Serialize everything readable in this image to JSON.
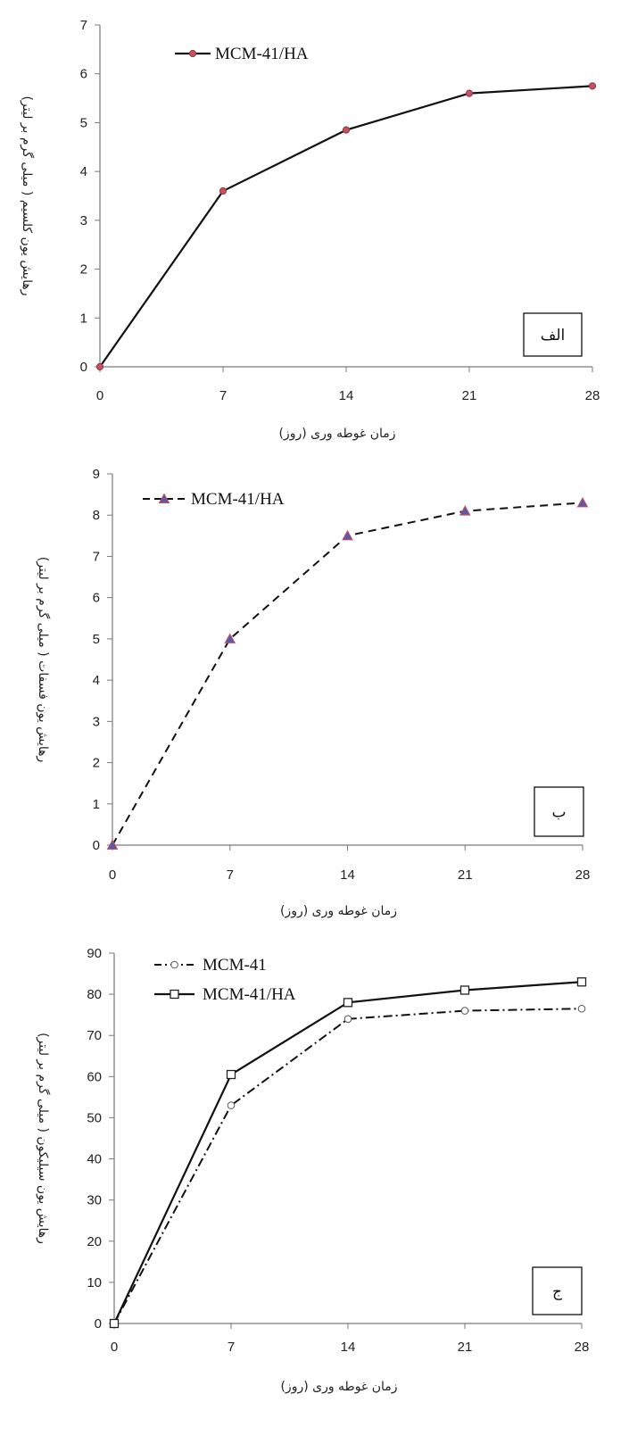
{
  "chart_data": [
    {
      "type": "line",
      "panel_label": "الف",
      "xlabel": "زمان غوطه وری (روز)",
      "ylabel": "رهایش یون کلسیم ( میلی گرم بر لیتر)",
      "x": [
        0,
        7,
        14,
        21,
        28
      ],
      "x_ticks": [
        "0",
        "7",
        "14",
        "21",
        "28"
      ],
      "ylim": [
        0,
        7
      ],
      "y_ticks": [
        "0",
        "1",
        "2",
        "3",
        "4",
        "5",
        "6",
        "7"
      ],
      "legend_position": "top-left",
      "series": [
        {
          "name": "MCM-41/HA",
          "values": [
            0,
            3.6,
            4.85,
            5.6,
            5.75
          ],
          "line_style": "solid",
          "marker": "circle",
          "color": "#111111",
          "marker_color": "#c8505f"
        }
      ]
    },
    {
      "type": "line",
      "panel_label": "ب",
      "xlabel": "زمان غوطه وری (روز)",
      "ylabel": "رهایش یون فسفات ( میلی گرم بر لیتر)",
      "x": [
        0,
        7,
        14,
        21,
        28
      ],
      "x_ticks": [
        "0",
        "7",
        "14",
        "21",
        "28"
      ],
      "ylim": [
        0,
        9
      ],
      "y_ticks": [
        "0",
        "1",
        "2",
        "3",
        "4",
        "5",
        "6",
        "7",
        "8",
        "9"
      ],
      "legend_position": "top-left",
      "series": [
        {
          "name": "MCM-41/HA",
          "values": [
            0,
            5.0,
            7.5,
            8.1,
            8.3
          ],
          "line_style": "dashed",
          "marker": "triangle",
          "color": "#111111",
          "marker_color": "#5a5aa8",
          "marker_edge": "#c8505f"
        }
      ]
    },
    {
      "type": "line",
      "panel_label": "ج",
      "xlabel": "زمان غوطه وری (روز)",
      "ylabel": "رهایش یون سیلیکون ( میلی گرم بر لیتر)",
      "x": [
        0,
        7,
        14,
        21,
        28
      ],
      "x_ticks": [
        "0",
        "7",
        "14",
        "21",
        "28"
      ],
      "ylim": [
        0,
        90
      ],
      "y_ticks": [
        "0",
        "10",
        "20",
        "30",
        "40",
        "50",
        "60",
        "70",
        "80",
        "90"
      ],
      "legend_position": "top-left",
      "series": [
        {
          "name": "MCM-41",
          "values": [
            0,
            53,
            74,
            76,
            76.5
          ],
          "line_style": "dashdot",
          "marker": "circle-open",
          "color": "#111111",
          "marker_color": "#ffffff"
        },
        {
          "name": "MCM-41/HA",
          "values": [
            0,
            60.5,
            78,
            81,
            83
          ],
          "line_style": "solid",
          "marker": "square-open",
          "color": "#111111",
          "marker_color": "#ffffff"
        }
      ]
    }
  ]
}
